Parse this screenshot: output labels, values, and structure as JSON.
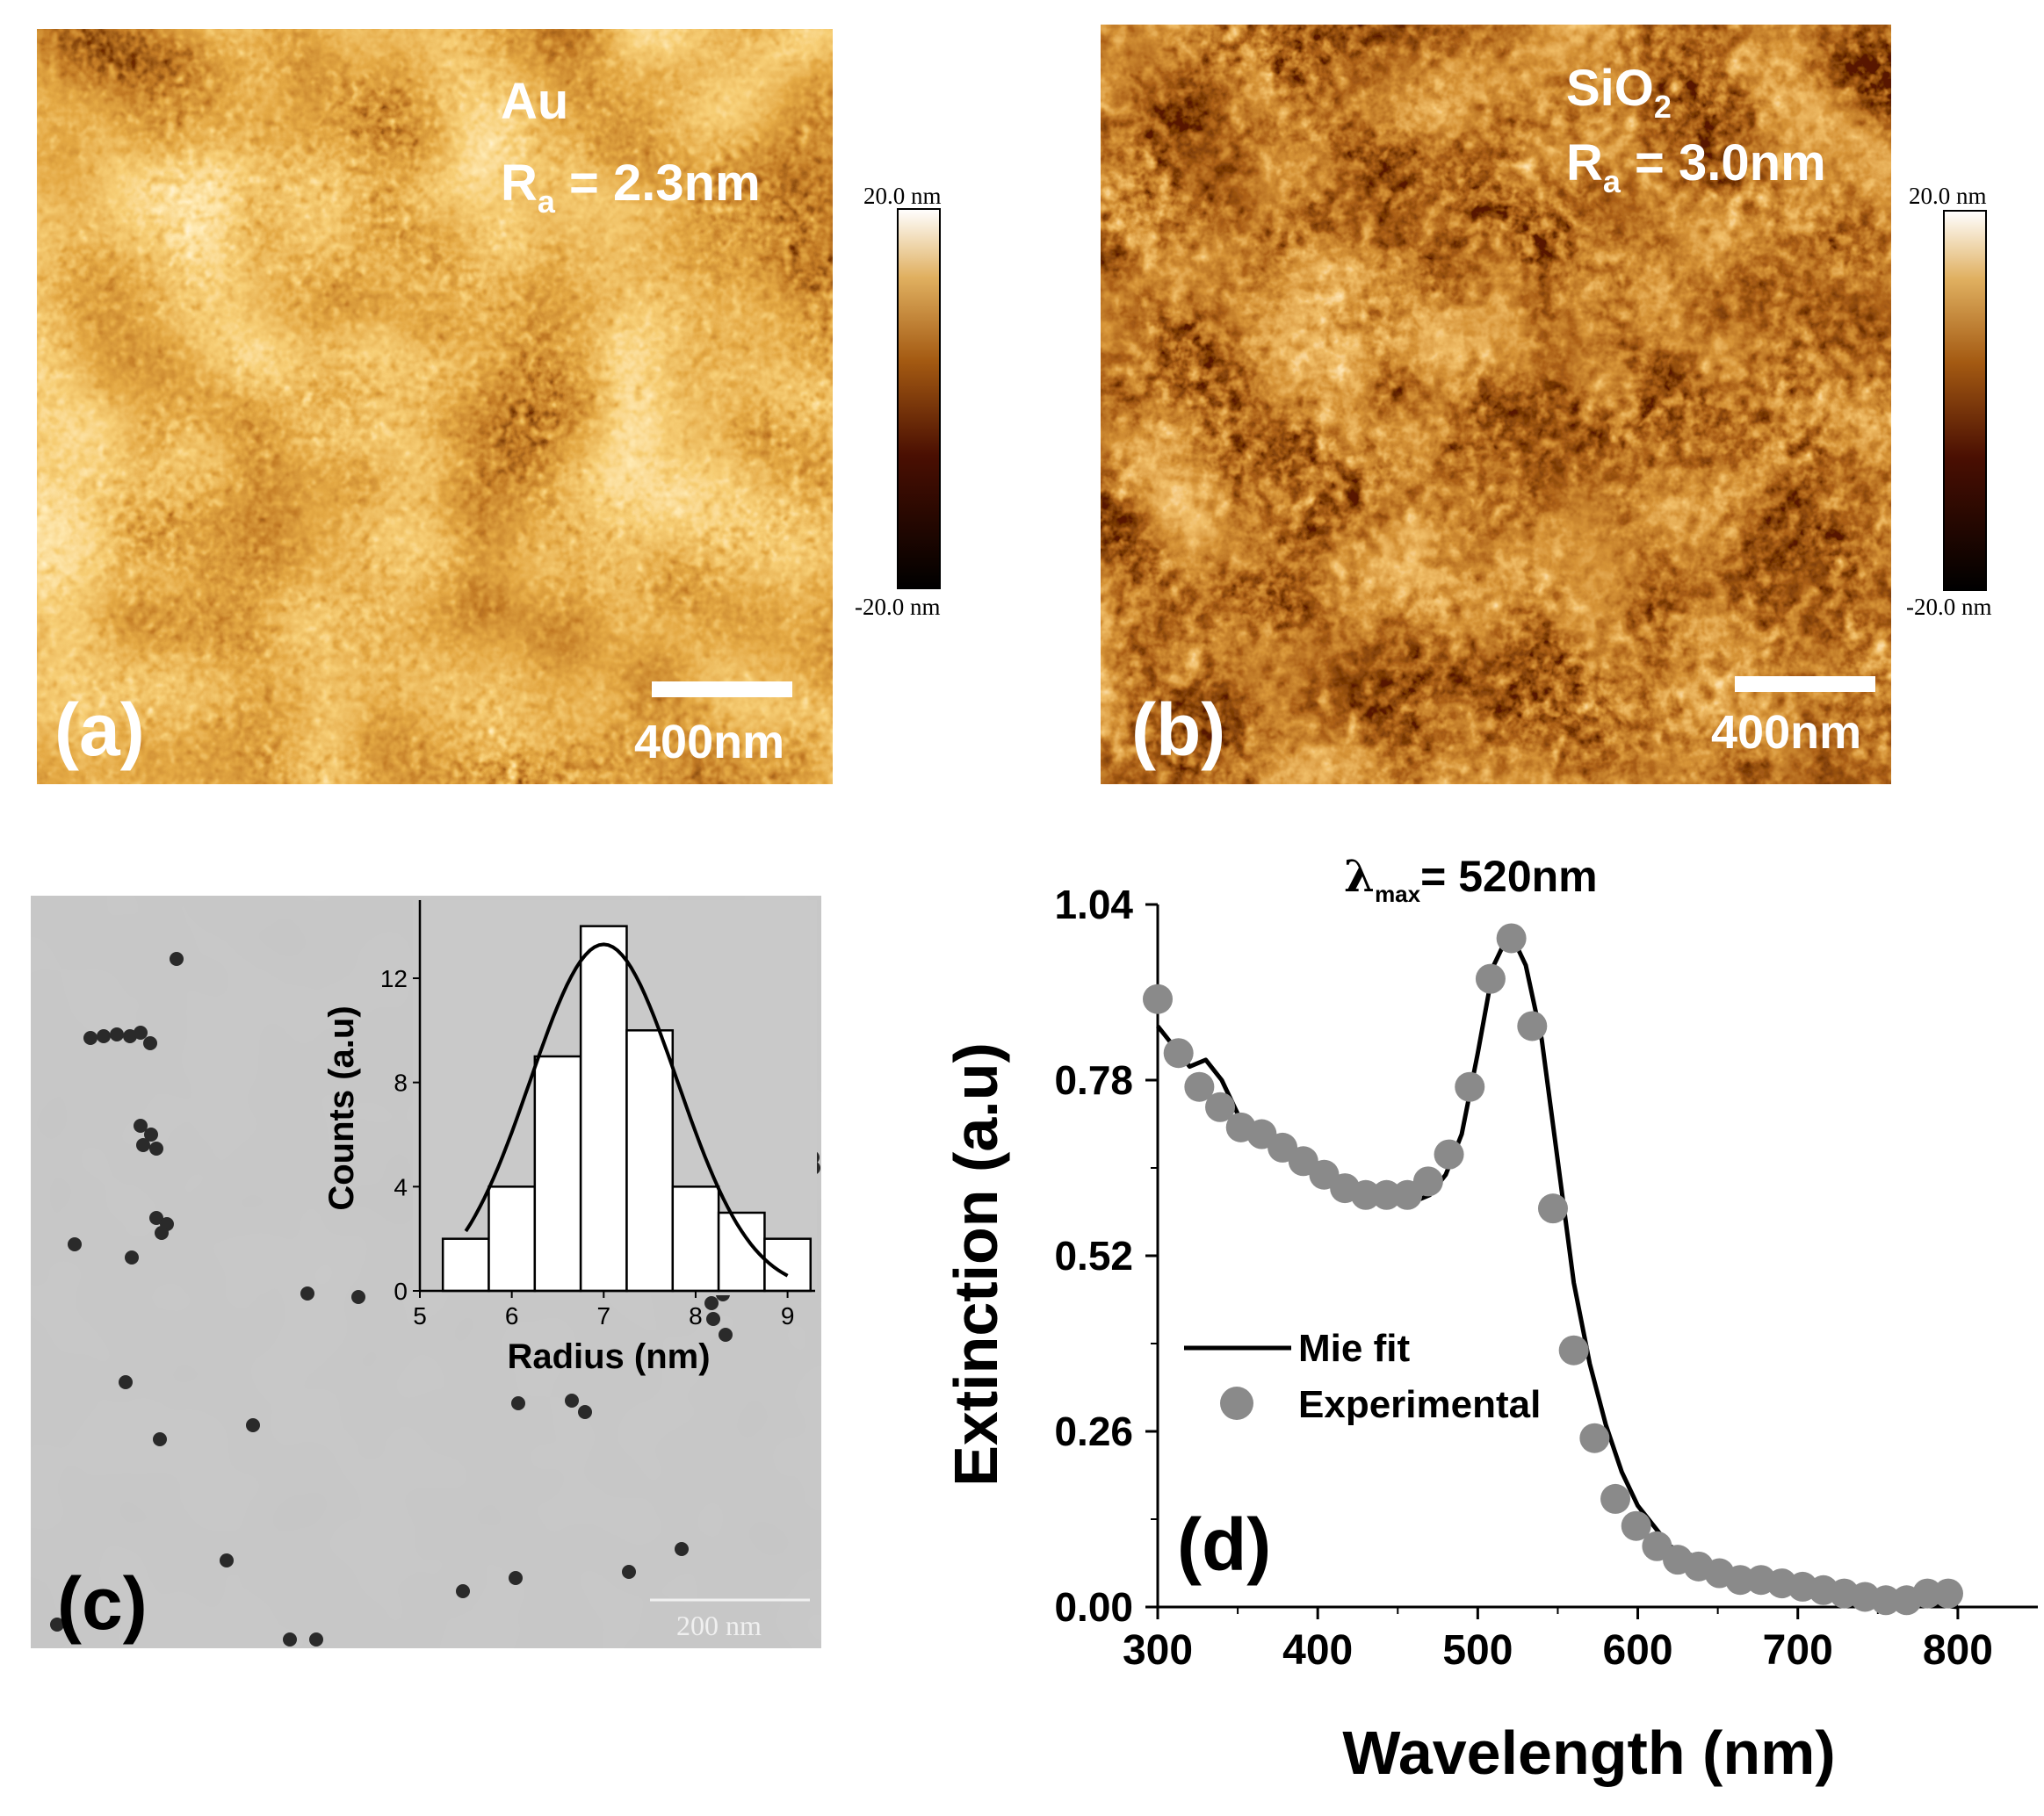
{
  "panels": {
    "a": {
      "label": "(a)",
      "material": "Au",
      "roughness_symbol": "R",
      "roughness_sub": "a",
      "roughness_value": " = 2.3nm",
      "scalebar_label": "400nm",
      "colorbar_max": "20.0 nm",
      "colorbar_min": "-20.0 nm"
    },
    "b": {
      "label": "(b)",
      "material_main": "SiO",
      "material_sub": "2",
      "roughness_symbol": "R",
      "roughness_sub": "a",
      "roughness_value": " = 3.0nm",
      "scalebar_label": "400nm",
      "colorbar_max": "20.0 nm",
      "colorbar_min": "-20.0 nm"
    },
    "c": {
      "label": "(c)",
      "scalebar_label": "200 nm"
    },
    "d": {
      "label": "(d)",
      "annotation_symbol": "λ",
      "annotation_sub": "max",
      "annotation_value": "= 520nm"
    }
  },
  "colors": {
    "afm_dark": "#000000",
    "afm_mid": "#a45a12",
    "afm_light": "#ffffff",
    "tem_bg": "#c9c9c9",
    "marker_gray": "#8a8a8a",
    "fit_line": "#000000"
  },
  "chart_data": [
    {
      "type": "bar",
      "title": "",
      "xlabel": "Radius (nm)",
      "ylabel": "Counts (a.u)",
      "categories": [
        5.5,
        6.0,
        6.5,
        7.0,
        7.5,
        8.0,
        8.5,
        9.0
      ],
      "values": [
        2,
        4,
        9,
        14,
        10,
        4,
        3,
        2
      ],
      "xlim": [
        5,
        9.3
      ],
      "ylim": [
        0,
        15
      ],
      "xticks": [
        "5",
        "6",
        "7",
        "8",
        "9"
      ],
      "yticks": [
        "0",
        "4",
        "8",
        "12"
      ],
      "fit": {
        "type": "gaussian",
        "mean": 7.0,
        "sigma": 0.8,
        "amplitude": 13.3
      }
    },
    {
      "type": "line",
      "title": "",
      "xlabel": "Wavelength (nm)",
      "ylabel": "Extinction (a.u)",
      "xlim": [
        300,
        850
      ],
      "ylim": [
        0,
        1.04
      ],
      "xticks": [
        "300",
        "400",
        "500",
        "600",
        "700",
        "800"
      ],
      "yticks": [
        "0.00",
        "0.26",
        "0.52",
        "0.78",
        "1.04"
      ],
      "legend": [
        "Mie fit",
        "Experimental"
      ],
      "legend_position": "center-left",
      "series": [
        {
          "name": "Mie fit",
          "style": "line",
          "x": [
            300,
            310,
            320,
            330,
            340,
            350,
            360,
            380,
            400,
            420,
            440,
            460,
            470,
            480,
            490,
            500,
            510,
            520,
            530,
            540,
            550,
            560,
            570,
            580,
            590,
            600,
            620,
            640,
            660,
            680,
            700,
            720,
            750,
            780,
            800
          ],
          "y": [
            0.86,
            0.83,
            0.8,
            0.81,
            0.78,
            0.73,
            0.7,
            0.67,
            0.65,
            0.62,
            0.6,
            0.6,
            0.61,
            0.64,
            0.7,
            0.82,
            0.95,
            1.0,
            0.95,
            0.84,
            0.66,
            0.48,
            0.36,
            0.27,
            0.2,
            0.15,
            0.09,
            0.07,
            0.05,
            0.04,
            0.03,
            0.02,
            0.01,
            0.005,
            0.0
          ]
        },
        {
          "name": "Experimental",
          "style": "scatter",
          "x": [
            300,
            313,
            326,
            339,
            352,
            365,
            378,
            391,
            404,
            417,
            430,
            443,
            456,
            469,
            482,
            495,
            508,
            521,
            534,
            547,
            560,
            573,
            586,
            599,
            612,
            625,
            638,
            651,
            664,
            677,
            690,
            703,
            716,
            729,
            742,
            755,
            768,
            781,
            794
          ],
          "y": [
            0.9,
            0.82,
            0.77,
            0.74,
            0.71,
            0.7,
            0.68,
            0.66,
            0.64,
            0.62,
            0.61,
            0.61,
            0.61,
            0.63,
            0.67,
            0.77,
            0.93,
            0.99,
            0.86,
            0.59,
            0.38,
            0.25,
            0.16,
            0.12,
            0.09,
            0.07,
            0.06,
            0.05,
            0.04,
            0.04,
            0.035,
            0.03,
            0.025,
            0.02,
            0.015,
            0.01,
            0.01,
            0.02,
            0.02
          ]
        }
      ]
    }
  ]
}
